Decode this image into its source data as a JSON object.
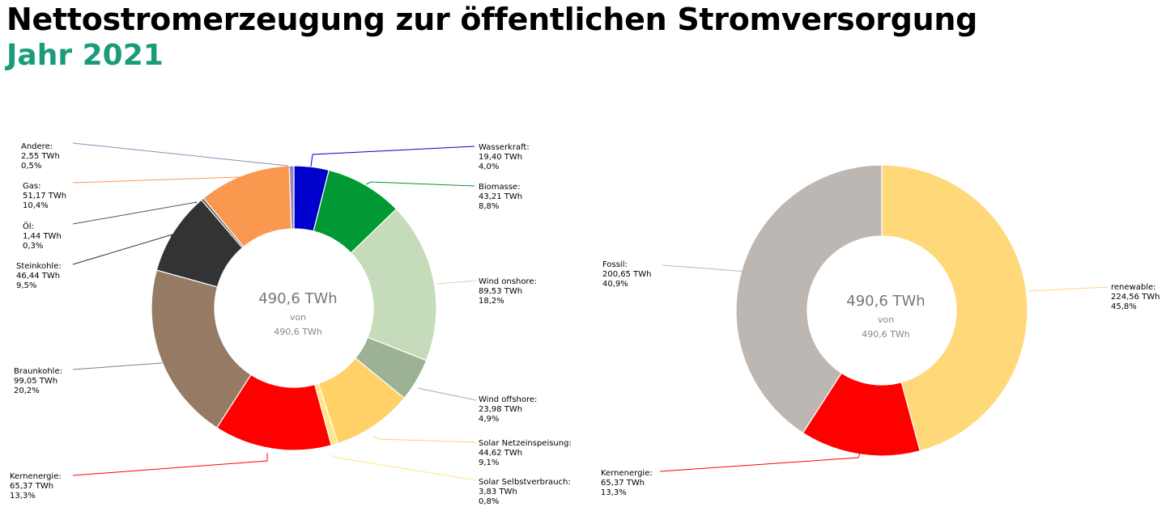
{
  "header": {
    "title": "Nettostromerzeugung zur öffentlichen Stromversorgung",
    "subtitle": "Jahr 2021"
  },
  "chart_data": [
    {
      "type": "pie",
      "unit": "TWh",
      "center": {
        "main": "490,6 TWh",
        "of": "von",
        "total": "490,6 TWh"
      },
      "slices": [
        {
          "name": "Wasserkraft",
          "value": 19.4,
          "value_label": "19,40 TWh",
          "pct_label": "4,0%",
          "color": "#0000cc"
        },
        {
          "name": "Biomasse",
          "value": 43.21,
          "value_label": "43,21 TWh",
          "pct_label": "8,8%",
          "color": "#009933"
        },
        {
          "name": "Wind onshore",
          "value": 89.53,
          "value_label": "89,53 TWh",
          "pct_label": "18,2%",
          "color": "#c5dbb9"
        },
        {
          "name": "Wind offshore",
          "value": 23.98,
          "value_label": "23,98 TWh",
          "pct_label": "4,9%",
          "color": "#9cb293"
        },
        {
          "name": "Solar Netzeinspeisung",
          "value": 44.62,
          "value_label": "44,62 TWh",
          "pct_label": "9,1%",
          "color": "#ffd166"
        },
        {
          "name": "Solar Selbstverbrauch",
          "value": 3.83,
          "value_label": "3,83 TWh",
          "pct_label": "0,8%",
          "color": "#ffe680"
        },
        {
          "name": "Kernenergie",
          "value": 65.37,
          "value_label": "65,37 TWh",
          "pct_label": "13,3%",
          "color": "#ff0000"
        },
        {
          "name": "Braunkohle",
          "value": 99.05,
          "value_label": "99,05 TWh",
          "pct_label": "20,2%",
          "color": "#957b63"
        },
        {
          "name": "Steinkohle",
          "value": 46.44,
          "value_label": "46,44 TWh",
          "pct_label": "9,5%",
          "color": "#333333"
        },
        {
          "name": "Öl",
          "value": 1.44,
          "value_label": "1,44 TWh",
          "pct_label": "0,3%",
          "color": "#555555"
        },
        {
          "name": "Gas",
          "value": 51.17,
          "value_label": "51,17 TWh",
          "pct_label": "10,4%",
          "color": "#fa9850"
        },
        {
          "name": "Andere",
          "value": 2.55,
          "value_label": "2,55 TWh",
          "pct_label": "0,5%",
          "color": "#9a85b8"
        }
      ]
    },
    {
      "type": "pie",
      "unit": "TWh",
      "center": {
        "main": "490,6 TWh",
        "of": "von",
        "total": "490,6 TWh"
      },
      "slices": [
        {
          "name": "renewable",
          "value": 224.56,
          "value_label": "224,56 TWh",
          "pct_label": "45,8%",
          "color": "#ffd87a"
        },
        {
          "name": "Kernenergie",
          "value": 65.37,
          "value_label": "65,37 TWh",
          "pct_label": "13,3%",
          "color": "#ff0000"
        },
        {
          "name": "Fossil",
          "value": 200.65,
          "value_label": "200,65 TWh",
          "pct_label": "40,9%",
          "color": "#bcb7b3"
        }
      ]
    }
  ]
}
